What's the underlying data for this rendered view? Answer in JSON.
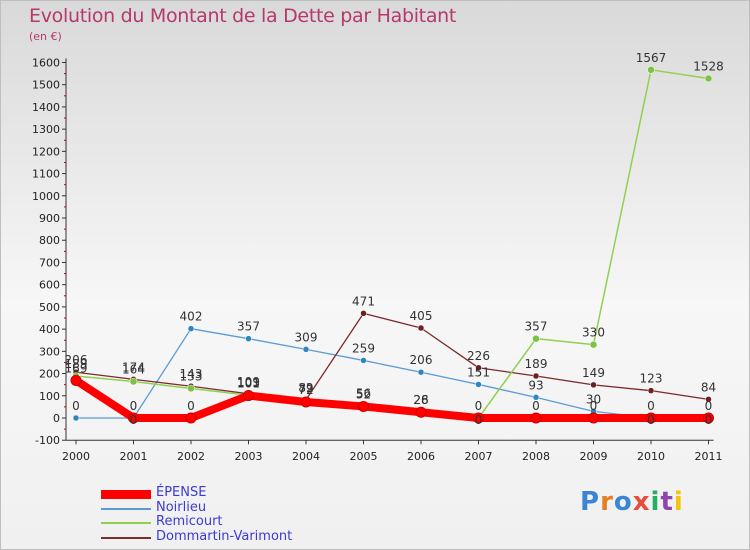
{
  "title": "Evolution du Montant de la Dette par Habitant",
  "subtitle": "(en €)",
  "logo": {
    "text": "Proxiti",
    "letters": [
      {
        "ch": "P",
        "color": "#3a86d4"
      },
      {
        "ch": "r",
        "color": "#e67e22"
      },
      {
        "ch": "o",
        "color": "#3a86d4"
      },
      {
        "ch": "x",
        "color": "#e74c3c"
      },
      {
        "ch": "i",
        "color": "#27ae60"
      },
      {
        "ch": "t",
        "color": "#8e44ad"
      },
      {
        "ch": "i",
        "color": "#f1c40f"
      }
    ]
  },
  "chart_data": {
    "type": "line",
    "title": "Evolution du Montant de la Dette par Habitant",
    "ylabel": "(en €)",
    "xlabel": "",
    "x": [
      "2000",
      "2001",
      "2002",
      "2003",
      "2004",
      "2005",
      "2006",
      "2007",
      "2008",
      "2009",
      "2010",
      "2011"
    ],
    "ylim": [
      -100,
      1600
    ],
    "yticks": [
      -100,
      0,
      100,
      200,
      300,
      400,
      500,
      600,
      700,
      800,
      900,
      1000,
      1100,
      1200,
      1300,
      1400,
      1500,
      1600
    ],
    "grid": false,
    "legend_position": "bottom-left",
    "series": [
      {
        "name": "ÉPENSE",
        "color": "#ff0000",
        "marker": "#ff0000",
        "values": [
          169,
          0,
          0,
          101,
          72,
          52,
          26,
          0,
          0,
          0,
          0,
          0
        ]
      },
      {
        "name": "Noirlieu",
        "color": "#5b9bd5",
        "marker": "#2e86c1",
        "values": [
          0,
          0,
          402,
          357,
          309,
          259,
          206,
          151,
          93,
          30,
          0,
          0
        ]
      },
      {
        "name": "Remicourt",
        "color": "#8fd14f",
        "marker": "#7dc242",
        "values": [
          189,
          164,
          133,
          103,
          79,
          56,
          28,
          0,
          357,
          330,
          1567,
          1528
        ]
      },
      {
        "name": "Dommartin-Varimont",
        "color": "#7b2b2b",
        "marker": "#6b1f1f",
        "values": [
          206,
          174,
          143,
          109,
          82,
          471,
          405,
          226,
          189,
          149,
          123,
          84
        ]
      }
    ],
    "data_labels": [
      {
        "x": "2000",
        "text": "206"
      },
      {
        "x": "2000",
        "text": "189"
      },
      {
        "x": "2000",
        "text": "169"
      },
      {
        "x": "2000",
        "text": "0"
      },
      {
        "x": "2001",
        "text": "174"
      },
      {
        "x": "2001",
        "text": "164"
      },
      {
        "x": "2001",
        "text": "0"
      },
      {
        "x": "2001",
        "text": "0"
      },
      {
        "x": "2002",
        "text": "143"
      },
      {
        "x": "2002",
        "text": "133"
      },
      {
        "x": "2002",
        "text": "402"
      },
      {
        "x": "2002",
        "text": "0"
      },
      {
        "x": "2003",
        "text": "109"
      },
      {
        "x": "2003",
        "text": "103"
      },
      {
        "x": "2003",
        "text": "101"
      },
      {
        "x": "2003",
        "text": "357"
      },
      {
        "x": "2004",
        "text": "82"
      },
      {
        "x": "2004",
        "text": "79"
      },
      {
        "x": "2004",
        "text": "72"
      },
      {
        "x": "2004",
        "text": "309"
      },
      {
        "x": "2005",
        "text": "471"
      },
      {
        "x": "2005",
        "text": "259"
      },
      {
        "x": "2005",
        "text": "56"
      },
      {
        "x": "2005",
        "text": "52"
      },
      {
        "x": "2006",
        "text": "405"
      },
      {
        "x": "2006",
        "text": "206"
      },
      {
        "x": "2006",
        "text": "28"
      },
      {
        "x": "2006",
        "text": "26"
      },
      {
        "x": "2007",
        "text": "226"
      },
      {
        "x": "2007",
        "text": "151"
      },
      {
        "x": "2007",
        "text": "0"
      },
      {
        "x": "2007",
        "text": "0"
      },
      {
        "x": "2008",
        "text": "357"
      },
      {
        "x": "2008",
        "text": "189"
      },
      {
        "x": "2008",
        "text": "93"
      },
      {
        "x": "2008",
        "text": "0"
      },
      {
        "x": "2009",
        "text": "330"
      },
      {
        "x": "2009",
        "text": "149"
      },
      {
        "x": "2009",
        "text": "30"
      },
      {
        "x": "2009",
        "text": "0"
      },
      {
        "x": "2010",
        "text": "1567"
      },
      {
        "x": "2010",
        "text": "123"
      },
      {
        "x": "2010",
        "text": "0"
      },
      {
        "x": "2010",
        "text": "0"
      },
      {
        "x": "2011",
        "text": "1528"
      },
      {
        "x": "2011",
        "text": "84"
      },
      {
        "x": "2011",
        "text": "0"
      },
      {
        "x": "2011",
        "text": "0"
      }
    ]
  }
}
